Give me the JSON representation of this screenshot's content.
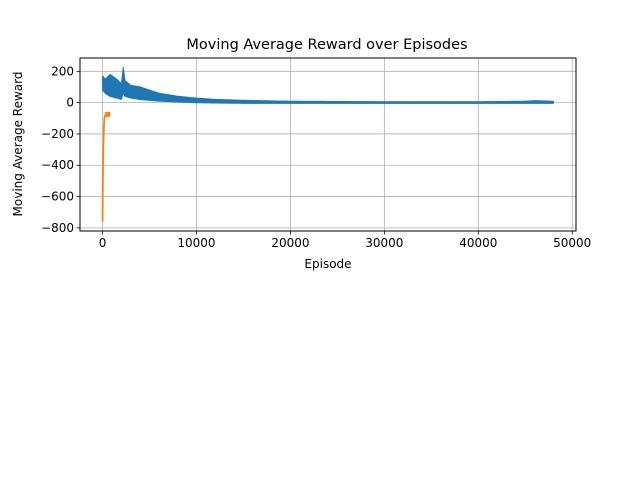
{
  "chart_data": {
    "type": "line",
    "title": "Moving Average Reward over Episodes",
    "xlabel": "Episode",
    "ylabel": "Moving Average Reward",
    "xlim": [
      -2400,
      50400
    ],
    "ylim": [
      -820,
      285
    ],
    "xticks": [
      0,
      10000,
      20000,
      30000,
      40000,
      50000
    ],
    "xtick_labels": [
      "0",
      "10000",
      "20000",
      "30000",
      "40000",
      "50000"
    ],
    "yticks": [
      200,
      0,
      -200,
      -400,
      -600,
      -800
    ],
    "ytick_labels": [
      "200",
      "0",
      "−200",
      "−400",
      "−600",
      "−800"
    ],
    "grid": true,
    "colors": {
      "series_a": "#1f77b4",
      "series_b": "#ff7f0e",
      "grid": "#b0b0b0"
    },
    "series": [
      {
        "color": "#1f77b4",
        "envelope": {
          "x": [
            0,
            300,
            800,
            1500,
            2000,
            2200,
            2400,
            3000,
            4000,
            5000,
            6000,
            8000,
            10000,
            12000,
            15000,
            20000,
            30000,
            40000,
            45000,
            46000,
            48000
          ],
          "upper": [
            170,
            150,
            180,
            150,
            120,
            225,
            140,
            110,
            100,
            80,
            60,
            40,
            28,
            20,
            14,
            8,
            5,
            5,
            8,
            12,
            8
          ],
          "lower": [
            80,
            60,
            40,
            30,
            20,
            60,
            40,
            30,
            20,
            15,
            10,
            5,
            0,
            -2,
            -4,
            -4,
            -4,
            -4,
            -4,
            -4,
            -4
          ]
        }
      },
      {
        "color": "#ff7f0e",
        "x": [
          0,
          20,
          50,
          100,
          150,
          200,
          250,
          300,
          350,
          400
        ],
        "y": [
          -760,
          -600,
          -400,
          -250,
          -150,
          -100,
          -85,
          -80,
          -80,
          -78
        ]
      }
    ]
  }
}
